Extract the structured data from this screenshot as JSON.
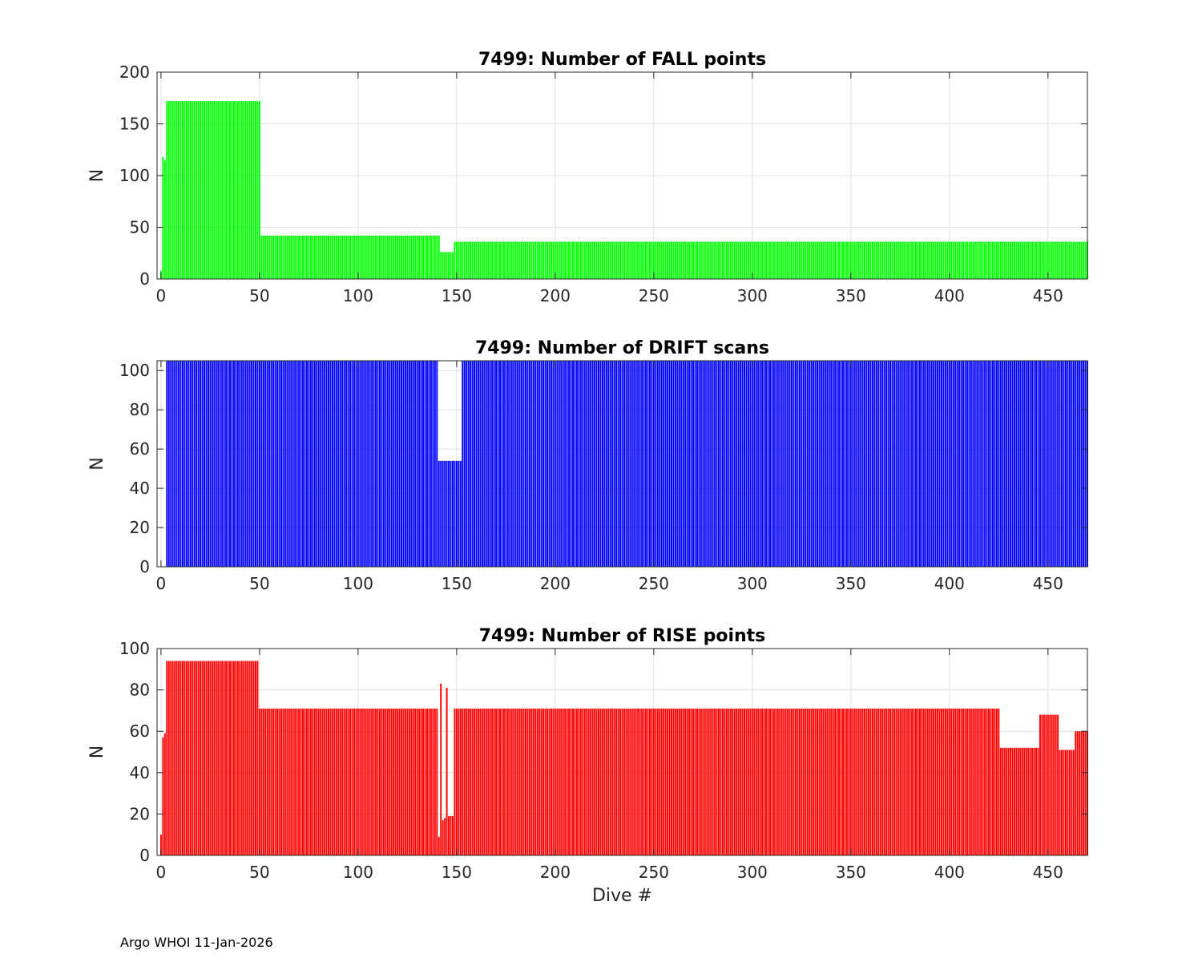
{
  "footer": "Argo WHOI 11-Jan-2026",
  "chart_data": [
    {
      "type": "bar",
      "title": "7499: Number of FALL points",
      "xlabel": "",
      "ylabel": "N",
      "xlim": [
        -2,
        470
      ],
      "ylim": [
        0,
        200
      ],
      "xticks": [
        0,
        50,
        100,
        150,
        200,
        250,
        300,
        350,
        400,
        450
      ],
      "yticks": [
        0,
        50,
        100,
        150,
        200
      ],
      "grid": true,
      "color": "#00ff00",
      "segments": [
        {
          "from": 0,
          "to": 0,
          "value": 8
        },
        {
          "from": 1,
          "to": 1,
          "value": 118
        },
        {
          "from": 2,
          "to": 2,
          "value": 115
        },
        {
          "from": 3,
          "to": 50,
          "value": 172
        },
        {
          "from": 51,
          "to": 141,
          "value": 42
        },
        {
          "from": 142,
          "to": 148,
          "value": 26
        },
        {
          "from": 149,
          "to": 470,
          "value": 36
        }
      ]
    },
    {
      "type": "bar",
      "title": "7499: Number of DRIFT scans",
      "xlabel": "",
      "ylabel": "N",
      "xlim": [
        -2,
        470
      ],
      "ylim": [
        0,
        105
      ],
      "xticks": [
        0,
        50,
        100,
        150,
        200,
        250,
        300,
        350,
        400,
        450
      ],
      "yticks": [
        0,
        20,
        40,
        60,
        80,
        100
      ],
      "grid": true,
      "color": "#0000ff",
      "segments": [
        {
          "from": 0,
          "to": 2,
          "value": 0
        },
        {
          "from": 3,
          "to": 140,
          "value": 105
        },
        {
          "from": 141,
          "to": 152,
          "value": 54
        },
        {
          "from": 153,
          "to": 470,
          "value": 105
        }
      ]
    },
    {
      "type": "bar",
      "title": "7499: Number of RISE points",
      "xlabel": "Dive #",
      "ylabel": "N",
      "xlim": [
        -2,
        470
      ],
      "ylim": [
        0,
        100
      ],
      "xticks": [
        0,
        50,
        100,
        150,
        200,
        250,
        300,
        350,
        400,
        450
      ],
      "yticks": [
        0,
        20,
        40,
        60,
        80,
        100
      ],
      "grid": true,
      "color": "#ff0000",
      "segments": [
        {
          "from": 0,
          "to": 0,
          "value": 10
        },
        {
          "from": 1,
          "to": 1,
          "value": 57
        },
        {
          "from": 2,
          "to": 2,
          "value": 59
        },
        {
          "from": 3,
          "to": 49,
          "value": 94
        },
        {
          "from": 50,
          "to": 140,
          "value": 71
        },
        {
          "from": 141,
          "to": 141,
          "value": 9
        },
        {
          "from": 142,
          "to": 142,
          "value": 83
        },
        {
          "from": 143,
          "to": 143,
          "value": 17
        },
        {
          "from": 144,
          "to": 144,
          "value": 18
        },
        {
          "from": 145,
          "to": 145,
          "value": 81
        },
        {
          "from": 146,
          "to": 148,
          "value": 19
        },
        {
          "from": 149,
          "to": 425,
          "value": 71
        },
        {
          "from": 426,
          "to": 445,
          "value": 52
        },
        {
          "from": 446,
          "to": 455,
          "value": 68
        },
        {
          "from": 456,
          "to": 463,
          "value": 51
        },
        {
          "from": 464,
          "to": 470,
          "value": 60
        }
      ]
    }
  ]
}
